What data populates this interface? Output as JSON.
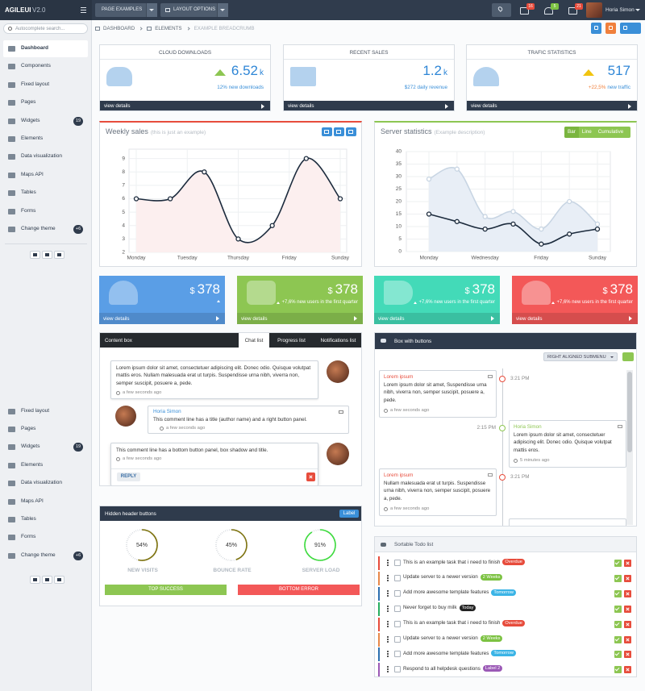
{
  "topbar": {
    "logo": "AGILEUI",
    "version": "V2.0",
    "menus": [
      "PAGE EXAMPLES",
      "LAYOUT OPTIONS"
    ],
    "badges": [
      16,
      5,
      21
    ],
    "user": "Horia Simon"
  },
  "sidebar": {
    "search_placeholder": "Autocomplete search...",
    "menu": [
      {
        "label": "Dashboard"
      },
      {
        "label": "Components"
      },
      {
        "label": "Fixed layout"
      },
      {
        "label": "Pages"
      },
      {
        "label": "Widgets",
        "badge": 19
      },
      {
        "label": "Elements"
      },
      {
        "label": "Data visualization"
      },
      {
        "label": "Maps API"
      },
      {
        "label": "Tables"
      },
      {
        "label": "Forms"
      },
      {
        "label": "Change theme",
        "badge": "+6"
      }
    ],
    "menu_repeat": [
      {
        "label": "Fixed layout"
      },
      {
        "label": "Pages"
      },
      {
        "label": "Widgets",
        "badge": 19
      },
      {
        "label": "Elements"
      },
      {
        "label": "Data visualization"
      },
      {
        "label": "Maps API"
      },
      {
        "label": "Tables"
      },
      {
        "label": "Forms"
      },
      {
        "label": "Change theme",
        "badge": "+6"
      }
    ]
  },
  "breadcrumb": [
    "DASHBOARD",
    "ELEMENTS",
    "EXAMPLE BREADCRUMB"
  ],
  "stats": [
    {
      "title": "CLOUD DOWNLOADS",
      "value": "6.52",
      "unit": "k",
      "note": "12% new downloads",
      "link": "view details"
    },
    {
      "title": "RECENT SALES",
      "value": "1.2",
      "unit": "k",
      "note": "$272 daily revenue",
      "link": "view details"
    },
    {
      "title": "TRAFIC STATISTICS",
      "value": "517",
      "note_highlight": "+22,5%",
      "note": "new traffic",
      "link": "view details"
    }
  ],
  "chart_data": [
    {
      "type": "line",
      "title": "Weekly sales",
      "subtitle": "(this is just an example)",
      "x": [
        0,
        1,
        2,
        3,
        4,
        5,
        6
      ],
      "xlim": [
        0,
        6
      ],
      "xticks": [
        {
          "value": 0,
          "label": "Monday"
        },
        {
          "value": 1.5,
          "label": "Tuesday"
        },
        {
          "value": 3,
          "label": "Thursday"
        },
        {
          "value": 4.5,
          "label": "Friday"
        },
        {
          "value": 6,
          "label": "Sunday"
        }
      ],
      "series": [
        {
          "color": "#1c2b3d",
          "fill": "#fcefef",
          "values": [
            6,
            6,
            8,
            3,
            4,
            9,
            6
          ]
        }
      ],
      "ylim": [
        2,
        9.7
      ],
      "yticks": [
        2,
        3,
        4,
        5,
        6,
        7,
        8,
        9
      ],
      "grid": true
    },
    {
      "type": "line",
      "title": "Server statistics",
      "subtitle": "(Example description)",
      "buttons": [
        "Bar",
        "Line",
        "Cumulative"
      ],
      "categories": [
        "Monday",
        null,
        "Wednesday",
        null,
        "Friday",
        null,
        "Sunday"
      ],
      "series": [
        {
          "color": "#c8d5e3",
          "fill": "#e8eef6",
          "values": [
            29,
            33,
            14,
            16,
            9,
            20,
            11
          ]
        },
        {
          "color": "#1c2b3d",
          "values": [
            15,
            12,
            9,
            11,
            3,
            7,
            9
          ]
        }
      ],
      "ylim": [
        0,
        40
      ],
      "yticks": [
        0,
        5,
        10,
        15,
        20,
        25,
        30,
        35,
        40
      ],
      "grid": true
    }
  ],
  "tiles": [
    {
      "currency": "$",
      "value": "378",
      "link": "view details",
      "color": "#5a9ee6"
    },
    {
      "currency": "$",
      "value": "378",
      "note": "+7,6% new users in the first quarter",
      "link": "view details",
      "color": "#8dc652"
    },
    {
      "currency": "$",
      "value": "378",
      "note": "+7,6% new users in the first quarter",
      "link": "view details",
      "color": "#43dab8"
    },
    {
      "currency": "$",
      "value": "378",
      "note": "+7,6% new users in the first quarter",
      "link": "view details",
      "color": "#f35858"
    }
  ],
  "content_box": {
    "title": "Content box",
    "tabs": [
      "Chat list",
      "Progress list",
      "Notifications list"
    ],
    "messages": [
      {
        "text": "Lorem ipsum dolor sit amet, consectetuer adipiscing elit. Donec odio. Quisque volutpat mattis eros. Nullam malesuada erat ut turpis. Suspendisse urna nibh, viverra non, semper suscipit, posuere a, pede.",
        "time": "a few seconds ago"
      },
      {
        "author": "Horia Simon",
        "text": "This comment line has a title (author name) and a right button panel.",
        "time": "a few seconds ago"
      },
      {
        "text": "This comment line has a bottom button panel, box shadow and title.",
        "time": "a few seconds ago",
        "button": "REPLY"
      }
    ]
  },
  "gauges_box": {
    "title": "Hidden header buttons",
    "label": "Label",
    "gauges": [
      {
        "value": 54,
        "label": "54%",
        "name": "NEW VISITS",
        "color": "#7f7410"
      },
      {
        "value": 45,
        "label": "45%",
        "name": "BOUNCE RATE",
        "color": "#7f7410"
      },
      {
        "value": 91,
        "label": "91%",
        "name": "SERVER LOAD",
        "color": "#3ddc3d"
      }
    ],
    "buttons": [
      "TOP SUCCESS",
      "BOTTOM ERROR"
    ]
  },
  "timeline_box": {
    "title": "Box with buttons",
    "submenu": "RIGHT ALIGNED SUBMENU",
    "items": [
      {
        "title": "Lorem ipsum",
        "text": "Lorem ipsum dolor sit amet, Suspendisse urna nibh, viverra non, semper suscipit, posuere a, pede.",
        "time": "3:21 PM",
        "ago": "a few seconds ago"
      },
      {
        "title": "Horia Simon",
        "text": "Lorem ipsum dolor sit amet, consectetuer adipiscing elit. Donec odio. Quisque volutpat mattis eros.",
        "time": "2:15 PM",
        "ago": "5 minutes ago"
      },
      {
        "title": "Lorem ipsum",
        "text": "Nullam malesuada erat ut turpis. Suspendisse urna nibh, viverra non, semper suscipit, posuere a, pede.",
        "time": "3:21 PM",
        "ago": "a few seconds ago"
      }
    ]
  },
  "todo": {
    "title": "Sortable Todo list",
    "items": [
      {
        "text": "This is an example task that i need to finish",
        "tag": "Overdue",
        "tag_color": "#e74c3c",
        "color": "#e74c3c"
      },
      {
        "text": "Update server to a newer version",
        "tag": "2 Weeks",
        "tag_color": "#7cc242",
        "color": "#e8884a"
      },
      {
        "text": "Add more awesome template features",
        "tag": "Tomorrow",
        "tag_color": "#3bb4e6",
        "color": "#2c6fb0"
      },
      {
        "text": "Never forget to buy milk",
        "tag": "Today",
        "tag_color": "#222222",
        "color": "#27ae60"
      },
      {
        "text": "This is an example task that i need to finish",
        "tag": "Overdue",
        "tag_color": "#e74c3c",
        "color": "#e74c3c"
      },
      {
        "text": "Update server to a newer version",
        "tag": "2 Weeks",
        "tag_color": "#7cc242",
        "color": "#e8884a"
      },
      {
        "text": "Add more awesome template features",
        "tag": "Tomorrow",
        "tag_color": "#3bb4e6",
        "color": "#2c6fb0"
      },
      {
        "text": "Respond to all helpdesk questions",
        "tag": "Label 2",
        "tag_color": "#9b59b6",
        "color": "#9b59b6"
      }
    ]
  }
}
